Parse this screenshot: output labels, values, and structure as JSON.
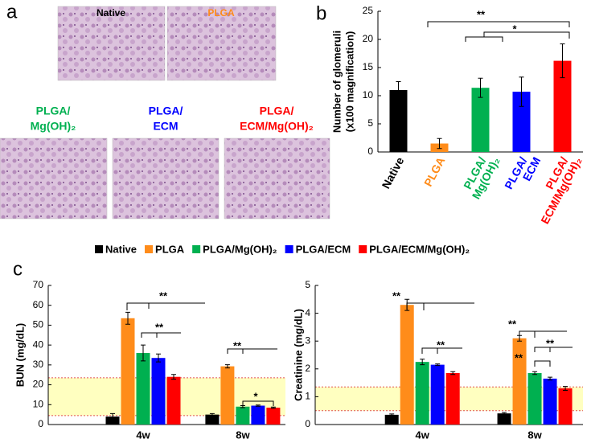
{
  "panel_labels": [
    "a",
    "b",
    "c"
  ],
  "images": [
    {
      "title": [
        "Native"
      ]
    },
    {
      "title": [
        "PLGA"
      ]
    },
    {
      "title": [
        "PLGA/",
        "Mg(OH)₂"
      ]
    },
    {
      "title": [
        "PLGA/",
        "ECM"
      ]
    },
    {
      "title": [
        "PLGA/",
        "ECM/Mg(OH)₂"
      ]
    }
  ],
  "legend": [
    {
      "name": "Native",
      "color": "#000000"
    },
    {
      "name": "PLGA",
      "color": "#ff8c1a"
    },
    {
      "name": "PLGA/Mg(OH)₂",
      "color": "#00b050"
    },
    {
      "name": "PLGA/ECM",
      "color": "#0000ff"
    },
    {
      "name": "PLGA/ECM/Mg(OH)₂",
      "color": "#ff0000"
    }
  ],
  "chart_data": [
    {
      "type": "bar",
      "ylabel": [
        "Number of glomeruli",
        "(x100 magnification)"
      ],
      "categories": [
        "Native",
        "PLGA",
        [
          "PLGA/",
          "Mg(OH)₂"
        ],
        [
          "PLGA/",
          "ECM"
        ],
        [
          "PLGA/",
          "ECM/Mg(OH)₂"
        ]
      ],
      "values": [
        11,
        1.5,
        11.4,
        10.7,
        16.2
      ],
      "errors": [
        1.5,
        0.9,
        1.7,
        2.6,
        3.0
      ],
      "colors": [
        "#000000",
        "#ff8c1a",
        "#00b050",
        "#0000ff",
        "#ff0000"
      ],
      "ylim": [
        0,
        25
      ],
      "yticks": [
        0,
        5,
        10,
        15,
        20,
        25
      ],
      "annotations": [
        "**",
        "*"
      ]
    },
    {
      "type": "grouped_bar",
      "ylabel": "BUN (mg/dL)",
      "categories": [
        "4w",
        "8w"
      ],
      "series": [
        {
          "color": "#000000",
          "values": [
            4,
            5
          ],
          "errors": [
            1.5,
            0.5
          ]
        },
        {
          "color": "#ff8c1a",
          "values": [
            53.5,
            29.3
          ],
          "errors": [
            3,
            0.8
          ]
        },
        {
          "color": "#00b050",
          "values": [
            36,
            9
          ],
          "errors": [
            4,
            0.5
          ]
        },
        {
          "color": "#0000ff",
          "values": [
            33.5,
            9.5
          ],
          "errors": [
            2,
            0.3
          ]
        },
        {
          "color": "#ff0000",
          "values": [
            24,
            8.5
          ],
          "errors": [
            1.2,
            0.3
          ]
        }
      ],
      "reference_range": [
        4.5,
        23.5
      ],
      "ylim": [
        0,
        70
      ],
      "yticks": [
        0,
        10,
        20,
        30,
        40,
        50,
        60,
        70
      ],
      "annotations": [
        "**",
        "**",
        "**",
        "*"
      ]
    },
    {
      "type": "grouped_bar",
      "ylabel": "Creatinine (mg/dL)",
      "categories": [
        "4w",
        "8w"
      ],
      "series": [
        {
          "color": "#000000",
          "values": [
            0.35,
            0.4
          ],
          "errors": [
            0.03,
            0.03
          ]
        },
        {
          "color": "#ff8c1a",
          "values": [
            4.3,
            3.1
          ],
          "errors": [
            0.2,
            0.1
          ]
        },
        {
          "color": "#00b050",
          "values": [
            2.25,
            1.85
          ],
          "errors": [
            0.1,
            0.05
          ]
        },
        {
          "color": "#0000ff",
          "values": [
            2.15,
            1.65
          ],
          "errors": [
            0.03,
            0.05
          ]
        },
        {
          "color": "#ff0000",
          "values": [
            1.85,
            1.3
          ],
          "errors": [
            0.05,
            0.07
          ]
        }
      ],
      "reference_range": [
        0.5,
        1.35
      ],
      "ylim": [
        0,
        5
      ],
      "yticks": [
        0,
        1,
        2,
        3,
        4,
        5
      ],
      "annotations": [
        "**",
        "**",
        "**",
        "**",
        "**"
      ]
    }
  ]
}
